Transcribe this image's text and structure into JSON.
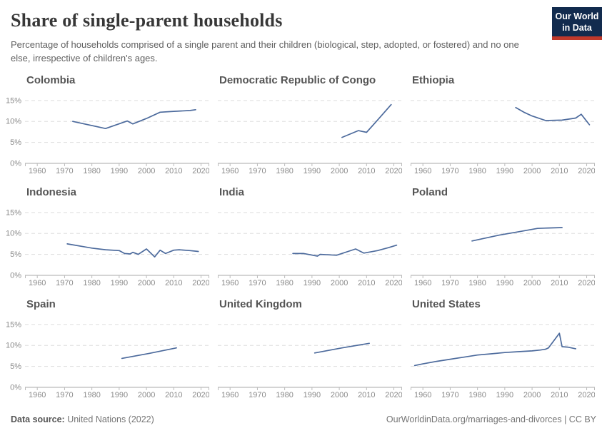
{
  "header": {
    "title": "Share of single-parent households",
    "subtitle": "Percentage of households comprised of a single parent and their children (biological, step, adopted, or fostered) and no one else, irrespective of children's ages.",
    "logo": {
      "line1": "Our World",
      "line2": "in Data",
      "bg_color": "#122B4E",
      "accent_color": "#C0392B"
    }
  },
  "colors": {
    "line": "#4C6A9C",
    "grid": "#DDDDDD",
    "axis": "#A9A9A9",
    "tick": "#BBBBBB",
    "tick_label": "#8B8B8B",
    "panel_title": "#555555"
  },
  "chart_data": [
    {
      "type": "line",
      "title": "Colombia",
      "xlabel": "",
      "ylabel": "",
      "xlim": [
        1955.5,
        2023
      ],
      "ylim": [
        0,
        16.5
      ],
      "x_ticks": [
        1960,
        1970,
        1980,
        1990,
        2000,
        2010,
        2020
      ],
      "y_ticks": [
        0,
        5,
        10,
        15
      ],
      "points": [
        [
          1973,
          10.0
        ],
        [
          1985,
          8.3
        ],
        [
          1993,
          10.1
        ],
        [
          1995,
          9.4
        ],
        [
          2000,
          10.7
        ],
        [
          2005,
          12.2
        ],
        [
          2010,
          12.4
        ],
        [
          2016,
          12.6
        ],
        [
          2018,
          12.8
        ]
      ]
    },
    {
      "type": "line",
      "title": "Democratic Republic of Congo",
      "xlabel": "",
      "ylabel": "",
      "xlim": [
        1955.5,
        2023
      ],
      "ylim": [
        0,
        16.5
      ],
      "x_ticks": [
        1960,
        1970,
        1980,
        1990,
        2000,
        2010,
        2020
      ],
      "y_ticks": [
        0,
        5,
        10,
        15
      ],
      "points": [
        [
          2001,
          6.2
        ],
        [
          2007,
          7.8
        ],
        [
          2010,
          7.4
        ],
        [
          2014,
          10.3
        ],
        [
          2019,
          14.0
        ]
      ]
    },
    {
      "type": "line",
      "title": "Ethiopia",
      "xlabel": "",
      "ylabel": "",
      "xlim": [
        1955.5,
        2023
      ],
      "ylim": [
        0,
        16.5
      ],
      "x_ticks": [
        1960,
        1970,
        1980,
        1990,
        2000,
        2010,
        2020
      ],
      "y_ticks": [
        0,
        5,
        10,
        15
      ],
      "points": [
        [
          1994,
          13.3
        ],
        [
          1997,
          12.2
        ],
        [
          2000,
          11.3
        ],
        [
          2005,
          10.2
        ],
        [
          2011,
          10.3
        ],
        [
          2016,
          10.8
        ],
        [
          2018,
          11.7
        ],
        [
          2021,
          9.2
        ]
      ]
    },
    {
      "type": "line",
      "title": "Indonesia",
      "xlabel": "",
      "ylabel": "",
      "xlim": [
        1955.5,
        2023
      ],
      "ylim": [
        0,
        16.5
      ],
      "x_ticks": [
        1960,
        1970,
        1980,
        1990,
        2000,
        2010,
        2020
      ],
      "y_ticks": [
        0,
        5,
        10,
        15
      ],
      "points": [
        [
          1971,
          7.5
        ],
        [
          1980,
          6.5
        ],
        [
          1985,
          6.1
        ],
        [
          1990,
          5.9
        ],
        [
          1992,
          5.2
        ],
        [
          1994,
          5.1
        ],
        [
          1995,
          5.5
        ],
        [
          1997,
          5.0
        ],
        [
          2000,
          6.3
        ],
        [
          2003,
          4.4
        ],
        [
          2005,
          6.0
        ],
        [
          2007,
          5.2
        ],
        [
          2010,
          6.0
        ],
        [
          2012,
          6.1
        ],
        [
          2016,
          5.9
        ],
        [
          2019,
          5.7
        ]
      ]
    },
    {
      "type": "line",
      "title": "India",
      "xlabel": "",
      "ylabel": "",
      "xlim": [
        1955.5,
        2023
      ],
      "ylim": [
        0,
        16.5
      ],
      "x_ticks": [
        1960,
        1970,
        1980,
        1990,
        2000,
        2010,
        2020
      ],
      "y_ticks": [
        0,
        5,
        10,
        15
      ],
      "points": [
        [
          1983,
          5.2
        ],
        [
          1987,
          5.2
        ],
        [
          1992,
          4.6
        ],
        [
          1993,
          5.0
        ],
        [
          1996,
          4.9
        ],
        [
          1999,
          4.8
        ],
        [
          2006,
          6.3
        ],
        [
          2009,
          5.3
        ],
        [
          2014,
          5.9
        ],
        [
          2018,
          6.6
        ],
        [
          2021,
          7.2
        ]
      ]
    },
    {
      "type": "line",
      "title": "Poland",
      "xlabel": "",
      "ylabel": "",
      "xlim": [
        1955.5,
        2023
      ],
      "ylim": [
        0,
        16.5
      ],
      "x_ticks": [
        1960,
        1970,
        1980,
        1990,
        2000,
        2010,
        2020
      ],
      "y_ticks": [
        0,
        5,
        10,
        15
      ],
      "points": [
        [
          1978,
          8.2
        ],
        [
          1988,
          9.6
        ],
        [
          1995,
          10.4
        ],
        [
          2002,
          11.2
        ],
        [
          2006,
          11.3
        ],
        [
          2011,
          11.4
        ]
      ]
    },
    {
      "type": "line",
      "title": "Spain",
      "xlabel": "",
      "ylabel": "",
      "xlim": [
        1955.5,
        2023
      ],
      "ylim": [
        0,
        16.5
      ],
      "x_ticks": [
        1960,
        1970,
        1980,
        1990,
        2000,
        2010,
        2020
      ],
      "y_ticks": [
        0,
        5,
        10,
        15
      ],
      "points": [
        [
          1991,
          6.9
        ],
        [
          2001,
          8.1
        ],
        [
          2011,
          9.4
        ]
      ]
    },
    {
      "type": "line",
      "title": "United Kingdom",
      "xlabel": "",
      "ylabel": "",
      "xlim": [
        1955.5,
        2023
      ],
      "ylim": [
        0,
        16.5
      ],
      "x_ticks": [
        1960,
        1970,
        1980,
        1990,
        2000,
        2010,
        2020
      ],
      "y_ticks": [
        0,
        5,
        10,
        15
      ],
      "points": [
        [
          1991,
          8.2
        ],
        [
          2001,
          9.4
        ],
        [
          2011,
          10.5
        ]
      ]
    },
    {
      "type": "line",
      "title": "United States",
      "xlabel": "",
      "ylabel": "",
      "xlim": [
        1955.5,
        2023
      ],
      "ylim": [
        0,
        16.5
      ],
      "x_ticks": [
        1960,
        1970,
        1980,
        1990,
        2000,
        2010,
        2020
      ],
      "y_ticks": [
        0,
        5,
        10,
        15
      ],
      "points": [
        [
          1957,
          5.2
        ],
        [
          1960,
          5.6
        ],
        [
          1965,
          6.2
        ],
        [
          1970,
          6.7
        ],
        [
          1975,
          7.2
        ],
        [
          1980,
          7.7
        ],
        [
          1985,
          8.0
        ],
        [
          1990,
          8.3
        ],
        [
          1995,
          8.5
        ],
        [
          2000,
          8.7
        ],
        [
          2003,
          8.9
        ],
        [
          2005,
          9.1
        ],
        [
          2006,
          9.4
        ],
        [
          2010,
          12.9
        ],
        [
          2011,
          9.7
        ],
        [
          2013,
          9.6
        ],
        [
          2016,
          9.2
        ]
      ]
    }
  ],
  "footer": {
    "source_label": "Data source:",
    "source_value": " United Nations (2022)",
    "credit": "OurWorldinData.org/marriages-and-divorces | CC BY"
  }
}
